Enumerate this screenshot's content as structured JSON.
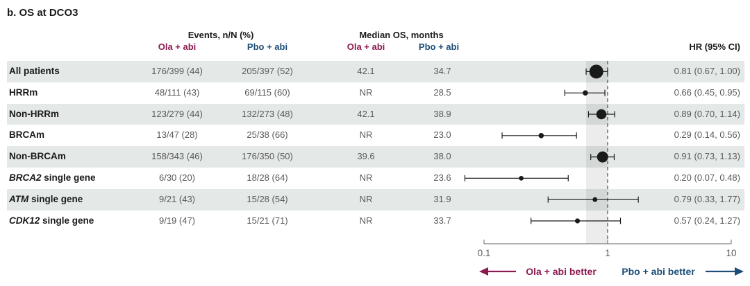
{
  "title": "b. OS at DCO3",
  "colors": {
    "ola": "#8C1A52",
    "pbo": "#1C4E79",
    "row_band": "#e4e9e8",
    "marker": "#1a1a1a",
    "value_text": "#595959",
    "label_text": "#1a1a1a"
  },
  "header": {
    "events_group": "Events, n/N (%)",
    "median_group": "Median OS, months",
    "ola_label": "Ola + abi",
    "pbo_label": "Pbo + abi",
    "hr_label": "HR (95% CI)"
  },
  "chart_data": {
    "type": "forest",
    "x_scale": "log10",
    "axis": {
      "min": 0.1,
      "mid": 1,
      "max": 10,
      "tick_labels": [
        "0.1",
        "1",
        "10"
      ]
    },
    "reference_line": 1,
    "shaded_band_ci": [
      0.67,
      1.0
    ],
    "footer": {
      "left_better": "Ola + abi better",
      "right_better": "Pbo + abi better"
    },
    "rows": [
      {
        "label_italic": "",
        "label_rest": "All patients",
        "events_ola": "176/399 (44)",
        "events_pbo": "205/397 (52)",
        "median_ola": "42.1",
        "median_pbo": "34.7",
        "hr": 0.81,
        "ci_low": 0.67,
        "ci_high": 1.0,
        "hr_text": "0.81 (0.67, 1.00)",
        "marker_r": 10
      },
      {
        "label_italic": "",
        "label_rest": "HRRm",
        "events_ola": "48/111 (43)",
        "events_pbo": "69/115 (60)",
        "median_ola": "NR",
        "median_pbo": "28.5",
        "hr": 0.66,
        "ci_low": 0.45,
        "ci_high": 0.95,
        "hr_text": "0.66 (0.45, 0.95)",
        "marker_r": 3.8
      },
      {
        "label_italic": "",
        "label_rest": "Non-HRRm",
        "events_ola": "123/279 (44)",
        "events_pbo": "132/273 (48)",
        "median_ola": "42.1",
        "median_pbo": "38.9",
        "hr": 0.89,
        "ci_low": 0.7,
        "ci_high": 1.14,
        "hr_text": "0.89 (0.70, 1.14)",
        "marker_r": 7.3
      },
      {
        "label_italic": "",
        "label_rest": "BRCAm",
        "events_ola": "13/47 (28)",
        "events_pbo": "25/38 (66)",
        "median_ola": "NR",
        "median_pbo": "23.0",
        "hr": 0.29,
        "ci_low": 0.14,
        "ci_high": 0.56,
        "hr_text": "0.29 (0.14, 0.56)",
        "marker_r": 3.8
      },
      {
        "label_italic": "",
        "label_rest": "Non-BRCAm",
        "events_ola": "158/343 (46)",
        "events_pbo": "176/350 (50)",
        "median_ola": "39.6",
        "median_pbo": "38.0",
        "hr": 0.91,
        "ci_low": 0.73,
        "ci_high": 1.13,
        "hr_text": "0.91 (0.73, 1.13)",
        "marker_r": 8
      },
      {
        "label_italic": "BRCA2",
        "label_rest": " single gene",
        "events_ola": "6/30 (20)",
        "events_pbo": "18/28 (64)",
        "median_ola": "NR",
        "median_pbo": "23.6",
        "hr": 0.2,
        "ci_low": 0.07,
        "ci_high": 0.48,
        "hr_text": "0.20 (0.07, 0.48)",
        "marker_r": 3.4
      },
      {
        "label_italic": "ATM",
        "label_rest": " single gene",
        "events_ola": "9/21 (43)",
        "events_pbo": "15/28 (54)",
        "median_ola": "NR",
        "median_pbo": "31.9",
        "hr": 0.79,
        "ci_low": 0.33,
        "ci_high": 1.77,
        "hr_text": "0.79 (0.33, 1.77)",
        "marker_r": 3.4
      },
      {
        "label_italic": "CDK12",
        "label_rest": " single gene",
        "events_ola": "9/19 (47)",
        "events_pbo": "15/21 (71)",
        "median_ola": "NR",
        "median_pbo": "33.7",
        "hr": 0.57,
        "ci_low": 0.24,
        "ci_high": 1.27,
        "hr_text": "0.57 (0.24, 1.27)",
        "marker_r": 3.6
      }
    ]
  }
}
